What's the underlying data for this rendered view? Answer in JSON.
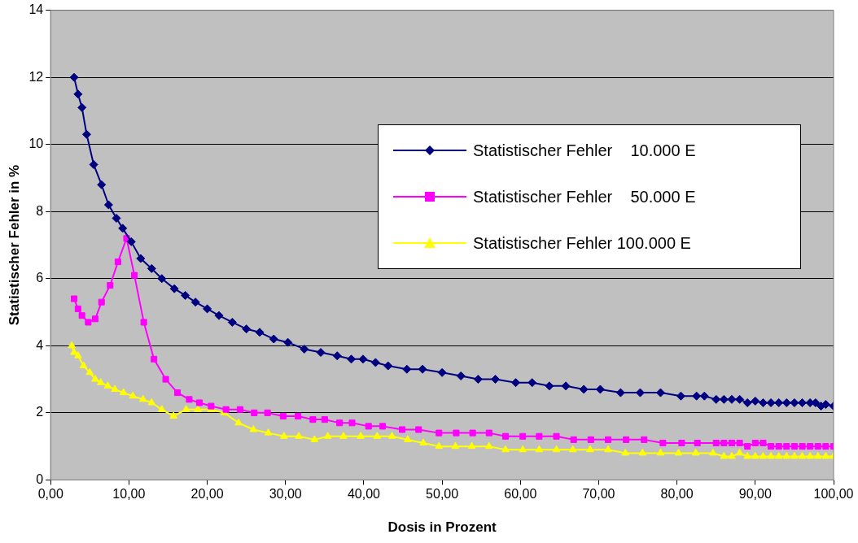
{
  "chart_data": {
    "type": "line",
    "xlabel": "Dosis in Prozent",
    "ylabel": "Statistischer Fehler in %",
    "xlim": [
      0,
      100
    ],
    "xticks": [
      {
        "value": 0,
        "label": "0,00"
      },
      {
        "value": 10,
        "label": "10,00"
      },
      {
        "value": 20,
        "label": "20,00"
      },
      {
        "value": 30,
        "label": "30,00"
      },
      {
        "value": 40,
        "label": "40,00"
      },
      {
        "value": 50,
        "label": "50,00"
      },
      {
        "value": 60,
        "label": "60,00"
      },
      {
        "value": 70,
        "label": "70,00"
      },
      {
        "value": 80,
        "label": "80,00"
      },
      {
        "value": 90,
        "label": "90,00"
      },
      {
        "value": 100,
        "label": "100,00"
      }
    ],
    "ylim": [
      0,
      14
    ],
    "yticks": [
      0,
      2,
      4,
      6,
      8,
      10,
      12,
      14
    ],
    "grid": "y",
    "legend": "right",
    "line_style": "solid",
    "series": [
      {
        "name": "Statistischer Fehler    10.000 E",
        "color": "#000080",
        "marker": "diamond",
        "x": [
          3,
          3.5,
          4,
          4.6,
          5.5,
          6.5,
          7.4,
          8.4,
          9.2,
          10.3,
          11.5,
          12.9,
          14.2,
          15.8,
          17.2,
          18.5,
          20,
          21.5,
          23.2,
          25,
          26.7,
          28.5,
          30.3,
          32.4,
          34.5,
          36.6,
          38.4,
          39.9,
          41.5,
          43.1,
          45.5,
          47.5,
          50,
          52.4,
          54.6,
          56.8,
          59.4,
          61.5,
          63.7,
          65.8,
          68.1,
          70.2,
          72.8,
          75.3,
          77.9,
          80.5,
          82.5,
          83.5,
          85,
          86,
          87,
          88,
          89,
          90,
          91,
          92,
          93,
          94,
          95,
          96,
          97,
          97.7,
          98.4,
          99,
          100
        ],
        "values": [
          12,
          11.5,
          11.1,
          10.3,
          9.4,
          8.8,
          8.2,
          7.8,
          7.5,
          7.1,
          6.6,
          6.3,
          6,
          5.7,
          5.5,
          5.3,
          5.1,
          4.9,
          4.7,
          4.5,
          4.4,
          4.2,
          4.1,
          3.9,
          3.8,
          3.7,
          3.6,
          3.6,
          3.5,
          3.4,
          3.3,
          3.3,
          3.2,
          3.1,
          3,
          3,
          2.9,
          2.9,
          2.8,
          2.8,
          2.7,
          2.7,
          2.6,
          2.6,
          2.6,
          2.5,
          2.5,
          2.5,
          2.4,
          2.4,
          2.4,
          2.4,
          2.3,
          2.35,
          2.3,
          2.3,
          2.3,
          2.3,
          2.3,
          2.3,
          2.3,
          2.3,
          2.2,
          2.25,
          2.2
        ]
      },
      {
        "name": "Statistischer Fehler    50.000 E",
        "color": "#ff00ff",
        "marker": "square",
        "x": [
          3,
          3.5,
          4,
          4.8,
          5.7,
          6.5,
          7.6,
          8.6,
          9.7,
          10.7,
          11.9,
          13.2,
          14.7,
          16.2,
          17.7,
          19,
          20.5,
          22.4,
          24.2,
          26,
          27.7,
          29.7,
          31.6,
          33.5,
          35,
          36.9,
          38.5,
          40.6,
          42.4,
          44.9,
          47,
          49.6,
          51.8,
          53.9,
          56,
          58.1,
          60.3,
          62.4,
          64.6,
          66.8,
          69,
          71.2,
          73.5,
          75.8,
          78.2,
          80.6,
          82.6,
          85,
          86,
          87,
          88,
          89,
          90,
          91,
          92,
          93,
          94,
          95,
          96,
          97,
          98,
          99,
          100
        ],
        "values": [
          5.4,
          5.1,
          4.9,
          4.7,
          4.8,
          5.3,
          5.8,
          6.5,
          7.2,
          6.1,
          4.7,
          3.6,
          3,
          2.6,
          2.4,
          2.3,
          2.2,
          2.1,
          2.1,
          2,
          2,
          1.9,
          1.9,
          1.8,
          1.8,
          1.7,
          1.7,
          1.6,
          1.6,
          1.5,
          1.5,
          1.4,
          1.4,
          1.4,
          1.4,
          1.3,
          1.3,
          1.3,
          1.3,
          1.2,
          1.2,
          1.2,
          1.2,
          1.2,
          1.1,
          1.1,
          1.1,
          1.1,
          1.1,
          1.1,
          1.1,
          1,
          1.1,
          1.1,
          1,
          1,
          1,
          1,
          1,
          1,
          1,
          1,
          1
        ]
      },
      {
        "name": "Statistischer Fehler 100.000 E",
        "color": "#ffff00",
        "marker": "triangle",
        "x": [
          2.7,
          3,
          3.5,
          4.2,
          5,
          5.7,
          6.4,
          7.3,
          8.2,
          9.3,
          10.5,
          11.8,
          12.9,
          14.2,
          15.7,
          17.3,
          18.8,
          20.5,
          22.2,
          24,
          25.9,
          27.8,
          29.8,
          31.7,
          33.7,
          35.4,
          37.4,
          39.6,
          41.7,
          43.6,
          45.6,
          47.6,
          49.6,
          51.7,
          53.8,
          56,
          58.1,
          60.3,
          62.4,
          64.6,
          66.7,
          68.9,
          71.2,
          73.4,
          75.6,
          77.9,
          80.2,
          82.4,
          84.6,
          86,
          87,
          88,
          89,
          90,
          91,
          92,
          93,
          94,
          95,
          96,
          97,
          98,
          99,
          100
        ],
        "values": [
          4,
          3.8,
          3.7,
          3.4,
          3.2,
          3,
          2.9,
          2.8,
          2.7,
          2.6,
          2.5,
          2.4,
          2.3,
          2.1,
          1.9,
          2.1,
          2.1,
          2.1,
          2,
          1.7,
          1.5,
          1.4,
          1.3,
          1.3,
          1.2,
          1.3,
          1.3,
          1.3,
          1.3,
          1.3,
          1.2,
          1.1,
          1,
          1,
          1,
          1,
          0.9,
          0.9,
          0.9,
          0.9,
          0.9,
          0.9,
          0.9,
          0.8,
          0.8,
          0.8,
          0.8,
          0.8,
          0.8,
          0.7,
          0.7,
          0.8,
          0.7,
          0.7,
          0.7,
          0.7,
          0.7,
          0.7,
          0.7,
          0.7,
          0.7,
          0.7,
          0.7,
          0.7
        ]
      }
    ]
  }
}
